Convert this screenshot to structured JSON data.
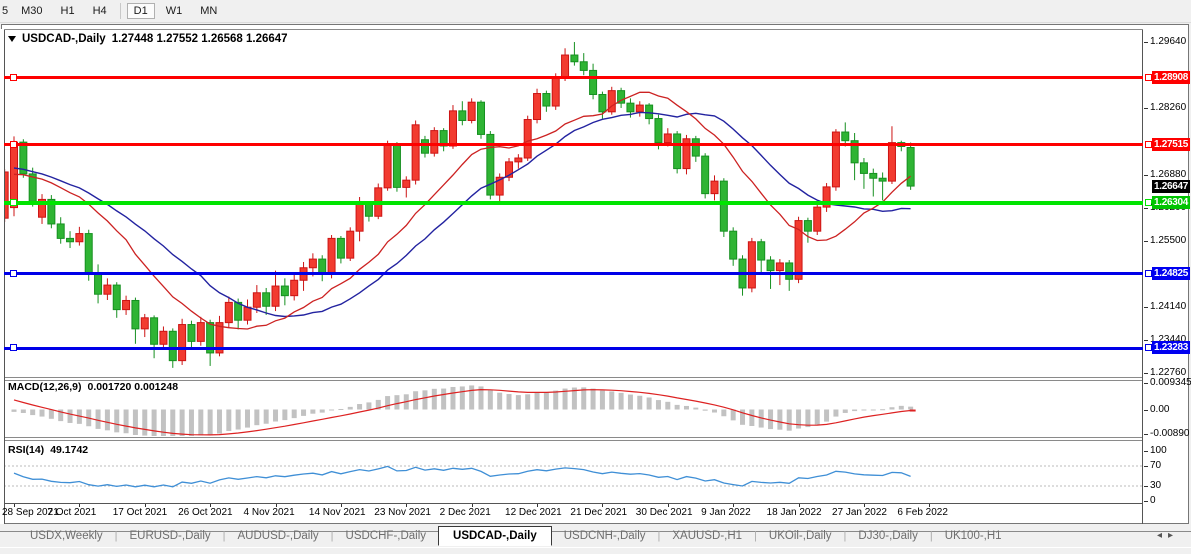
{
  "toolbar": {
    "timeframes": [
      "5",
      "M30",
      "H1",
      "H4",
      "D1",
      "W1",
      "MN"
    ],
    "active": "D1"
  },
  "window": {
    "title": {
      "symbol": "USDCAD-,Daily",
      "ohlc_text": "1.27448 1.27552 1.26568 1.26647"
    }
  },
  "price_axis": {
    "ticks": [
      {
        "label": "1.29640",
        "price": 1.2964
      },
      {
        "label": "1.28260",
        "price": 1.2826
      },
      {
        "label": "1.26880",
        "price": 1.2688
      },
      {
        "label": "1.26200",
        "price": 1.262
      },
      {
        "label": "1.25500",
        "price": 1.255
      },
      {
        "label": "1.24140",
        "price": 1.2414
      },
      {
        "label": "1.23440",
        "price": 1.2344
      },
      {
        "label": "1.22760",
        "price": 1.2276
      }
    ],
    "badges": [
      {
        "label": "1.28908",
        "price": 1.28908,
        "color": "#fe0000"
      },
      {
        "label": "1.27515",
        "price": 1.27515,
        "color": "#fe0000"
      },
      {
        "label": "1.26647",
        "price": 1.26647,
        "color": "#000000"
      },
      {
        "label": "1.26304",
        "price": 1.26304,
        "color": "#00c400"
      },
      {
        "label": "1.24825",
        "price": 1.24825,
        "color": "#0000f0"
      },
      {
        "label": "1.23283",
        "price": 1.23283,
        "color": "#0000f0"
      }
    ]
  },
  "hlines": [
    {
      "price": 1.28908,
      "color": "#fe0000",
      "thick": 3
    },
    {
      "price": 1.27515,
      "color": "#fe0000",
      "thick": 3
    },
    {
      "price": 1.26304,
      "color": "#00e400",
      "thick": 4
    },
    {
      "price": 1.24825,
      "color": "#0000e8",
      "thick": 3
    },
    {
      "price": 1.23283,
      "color": "#0000e8",
      "thick": 3
    }
  ],
  "macd_pane": {
    "label": "MACD(12,26,9)",
    "values": "0.001720 0.001248",
    "axis_ticks": [
      {
        "label": "0.009345",
        "value": 0.009345
      },
      {
        "label": "0.00",
        "value": 0
      },
      {
        "label": "-0.00890",
        "value": -0.0089
      }
    ]
  },
  "rsi_pane": {
    "label": "RSI(14)",
    "value": "49.1742",
    "axis_ticks": [
      {
        "label": "100",
        "value": 100
      },
      {
        "label": "70",
        "value": 70
      },
      {
        "label": "30",
        "value": 30
      },
      {
        "label": "0",
        "value": 0
      }
    ],
    "levels": [
      70,
      30
    ]
  },
  "tabs": {
    "items": [
      "USDX,Weekly",
      "EURUSD-,Daily",
      "AUDUSD-,Daily",
      "USDCHF-,Daily",
      "USDCAD-,Daily",
      "USDCNH-,Daily",
      "XAUUSD-,H1",
      "UKOil-,Daily",
      "DJ30-,Daily",
      "UK100-,H1"
    ],
    "active": "USDCAD-,Daily",
    "scroll_left_icon": "◂",
    "scroll_right_icon": "▸"
  },
  "chart_data": {
    "type": "candlestick",
    "symbol": "USDCAD-",
    "timeframe": "Daily",
    "last_ohlc": {
      "open": 1.27448,
      "high": 1.27552,
      "low": 1.26568,
      "close": 1.26647
    },
    "y_range": [
      1.2268,
      1.2989
    ],
    "x_labels": [
      {
        "text": "28 Sep 2021",
        "idx": 0
      },
      {
        "text": "7 Oct 2021",
        "idx": 7
      },
      {
        "text": "17 Oct 2021",
        "idx": 14
      },
      {
        "text": "26 Oct 2021",
        "idx": 21
      },
      {
        "text": "4 Nov 2021",
        "idx": 28
      },
      {
        "text": "14 Nov 2021",
        "idx": 35
      },
      {
        "text": "23 Nov 2021",
        "idx": 42
      },
      {
        "text": "2 Dec 2021",
        "idx": 49
      },
      {
        "text": "12 Dec 2021",
        "idx": 56
      },
      {
        "text": "21 Dec 2021",
        "idx": 63
      },
      {
        "text": "30 Dec 2021",
        "idx": 70
      },
      {
        "text": "9 Jan 2022",
        "idx": 77
      },
      {
        "text": "18 Jan 2022",
        "idx": 84
      },
      {
        "text": "27 Jan 2022",
        "idx": 91
      },
      {
        "text": "6 Feb 2022",
        "idx": 98
      }
    ],
    "indicators": {
      "ma_fast_period": 13,
      "ma_slow_period": 21,
      "macd": [
        12,
        26,
        9
      ],
      "rsi_period": 14
    },
    "colors": {
      "bull_fill": "#f23b30",
      "bull_stroke": "#cc1414",
      "bear_fill": "#2fb434",
      "bear_stroke": "#169020",
      "ma_fast": "#cc2222",
      "ma_slow": "#2323a0",
      "macd_hist": "#c2c2c2",
      "macd_signal": "#dd2222",
      "rsi_line": "#3f8fd6",
      "rsi_level": "#bbbbbb"
    },
    "seed_history_closes": [
      1.2772,
      1.2765,
      1.2758,
      1.2752,
      1.2745,
      1.2738,
      1.2732,
      1.2726,
      1.272,
      1.2714,
      1.2709,
      1.2704,
      1.27,
      1.2696,
      1.2692,
      1.2689,
      1.2686,
      1.2683,
      1.2681,
      1.2679,
      1.2677,
      1.2675,
      1.2673,
      1.2671
    ],
    "pre_candle": [
      1.2598,
      1.27,
      1.259,
      1.2694
    ],
    "candles": [
      [
        1.262,
        1.2768,
        1.2602,
        1.2756
      ],
      [
        1.2756,
        1.2762,
        1.2682,
        1.269
      ],
      [
        1.269,
        1.2703,
        1.2622,
        1.2633
      ],
      [
        1.26,
        1.2648,
        1.2586,
        1.2637
      ],
      [
        1.2637,
        1.2646,
        1.2577,
        1.2586
      ],
      [
        1.2586,
        1.26,
        1.2545,
        1.2556
      ],
      [
        1.2556,
        1.2571,
        1.2536,
        1.2549
      ],
      [
        1.2549,
        1.258,
        1.2541,
        1.2566
      ],
      [
        1.2566,
        1.2574,
        1.2468,
        1.2483
      ],
      [
        1.2483,
        1.2502,
        1.2421,
        1.244
      ],
      [
        1.244,
        1.2473,
        1.2428,
        1.2459
      ],
      [
        1.2459,
        1.2465,
        1.2391,
        1.2408
      ],
      [
        1.2408,
        1.2437,
        1.2397,
        1.2427
      ],
      [
        1.2427,
        1.2433,
        1.2337,
        1.2368
      ],
      [
        1.2368,
        1.2399,
        1.2351,
        1.2391
      ],
      [
        1.2391,
        1.2396,
        1.2307,
        1.2336
      ],
      [
        1.2336,
        1.2373,
        1.2325,
        1.2363
      ],
      [
        1.2363,
        1.2369,
        1.2287,
        1.2302
      ],
      [
        1.2302,
        1.2389,
        1.2293,
        1.2377
      ],
      [
        1.2377,
        1.2385,
        1.2325,
        1.2342
      ],
      [
        1.2342,
        1.2393,
        1.2333,
        1.2381
      ],
      [
        1.2381,
        1.2387,
        1.2291,
        1.2318
      ],
      [
        1.2318,
        1.2395,
        1.2311,
        1.2381
      ],
      [
        1.2381,
        1.2435,
        1.2371,
        1.2423
      ],
      [
        1.2423,
        1.2431,
        1.2367,
        1.2386
      ],
      [
        1.2386,
        1.2429,
        1.2377,
        1.2413
      ],
      [
        1.2413,
        1.2459,
        1.2401,
        1.2443
      ],
      [
        1.2443,
        1.2453,
        1.2397,
        1.2415
      ],
      [
        1.2415,
        1.2489,
        1.2405,
        1.2457
      ],
      [
        1.2457,
        1.2473,
        1.2417,
        1.2437
      ],
      [
        1.2437,
        1.2483,
        1.2427,
        1.2469
      ],
      [
        1.2469,
        1.2507,
        1.2447,
        1.2495
      ],
      [
        1.2495,
        1.2525,
        1.2477,
        1.2513
      ],
      [
        1.2513,
        1.2521,
        1.2467,
        1.2481
      ],
      [
        1.2481,
        1.2563,
        1.2473,
        1.2556
      ],
      [
        1.2556,
        1.2561,
        1.2504,
        1.2515
      ],
      [
        1.2515,
        1.2579,
        1.2509,
        1.2571
      ],
      [
        1.2571,
        1.2642,
        1.255,
        1.2627
      ],
      [
        1.2627,
        1.2633,
        1.2591,
        1.2602
      ],
      [
        1.2602,
        1.267,
        1.2596,
        1.2661
      ],
      [
        1.2661,
        1.2759,
        1.2655,
        1.275
      ],
      [
        1.275,
        1.2756,
        1.2653,
        1.2662
      ],
      [
        1.2662,
        1.2685,
        1.2641,
        1.2677
      ],
      [
        1.2677,
        1.2801,
        1.2668,
        1.2792
      ],
      [
        1.2761,
        1.2769,
        1.2724,
        1.2733
      ],
      [
        1.2733,
        1.2787,
        1.2726,
        1.278
      ],
      [
        1.278,
        1.2785,
        1.2737,
        1.2748
      ],
      [
        1.2748,
        1.2833,
        1.2742,
        1.2821
      ],
      [
        1.2821,
        1.2841,
        1.2791,
        1.2801
      ],
      [
        1.2801,
        1.2847,
        1.2795,
        1.2839
      ],
      [
        1.2839,
        1.2843,
        1.2763,
        1.2772
      ],
      [
        1.2772,
        1.2779,
        1.2637,
        1.2646
      ],
      [
        1.2646,
        1.2691,
        1.2633,
        1.2683
      ],
      [
        1.2683,
        1.2723,
        1.2675,
        1.2715
      ],
      [
        1.2715,
        1.2731,
        1.2701,
        1.2723
      ],
      [
        1.2723,
        1.2811,
        1.2717,
        1.2803
      ],
      [
        1.2803,
        1.2867,
        1.2795,
        1.2857
      ],
      [
        1.2857,
        1.2863,
        1.2819,
        1.2831
      ],
      [
        1.2831,
        1.2899,
        1.2823,
        1.2891
      ],
      [
        1.2891,
        1.2951,
        1.2883,
        1.2937
      ],
      [
        1.2937,
        1.2964,
        1.2915,
        1.2923
      ],
      [
        1.2923,
        1.2941,
        1.2895,
        1.2905
      ],
      [
        1.2905,
        1.2919,
        1.2845,
        1.2855
      ],
      [
        1.2855,
        1.2861,
        1.2805,
        1.2819
      ],
      [
        1.2819,
        1.2871,
        1.2813,
        1.2863
      ],
      [
        1.2863,
        1.2869,
        1.2827,
        1.2837
      ],
      [
        1.2837,
        1.2847,
        1.2807,
        1.2819
      ],
      [
        1.2819,
        1.2841,
        1.2809,
        1.2833
      ],
      [
        1.2833,
        1.2837,
        1.2793,
        1.2805
      ],
      [
        1.2805,
        1.2813,
        1.2741,
        1.2755
      ],
      [
        1.2755,
        1.2785,
        1.2747,
        1.2773
      ],
      [
        1.2773,
        1.2779,
        1.2691,
        1.2701
      ],
      [
        1.2701,
        1.2771,
        1.2689,
        1.2763
      ],
      [
        1.2763,
        1.2769,
        1.2715,
        1.2727
      ],
      [
        1.2727,
        1.2733,
        1.2639,
        1.2649
      ],
      [
        1.2649,
        1.2687,
        1.2635,
        1.2675
      ],
      [
        1.2675,
        1.2681,
        1.2559,
        1.2571
      ],
      [
        1.2571,
        1.2579,
        1.2499,
        1.2513
      ],
      [
        1.2513,
        1.2521,
        1.2437,
        1.2453
      ],
      [
        1.2453,
        1.2557,
        1.2444,
        1.2549
      ],
      [
        1.2549,
        1.2555,
        1.2485,
        1.2511
      ],
      [
        1.2511,
        1.2519,
        1.2451,
        1.2489
      ],
      [
        1.2489,
        1.2513,
        1.2459,
        1.2505
      ],
      [
        1.2505,
        1.2511,
        1.2447,
        1.2471
      ],
      [
        1.2471,
        1.2601,
        1.2463,
        1.2593
      ],
      [
        1.2593,
        1.2599,
        1.2547,
        1.2571
      ],
      [
        1.2571,
        1.2631,
        1.2563,
        1.2621
      ],
      [
        1.2621,
        1.2671,
        1.2611,
        1.2663
      ],
      [
        1.2663,
        1.2783,
        1.2655,
        1.2777
      ],
      [
        1.2777,
        1.2797,
        1.2747,
        1.2759
      ],
      [
        1.2759,
        1.2775,
        1.2677,
        1.2713
      ],
      [
        1.2713,
        1.2723,
        1.2659,
        1.2691
      ],
      [
        1.2691,
        1.2701,
        1.2643,
        1.2681
      ],
      [
        1.2681,
        1.2693,
        1.2635,
        1.2675
      ],
      [
        1.2675,
        1.2789,
        1.2669,
        1.2755
      ],
      [
        1.2755,
        1.2759,
        1.2737,
        1.2747
      ],
      [
        1.27448,
        1.27552,
        1.26568,
        1.26647
      ]
    ]
  }
}
